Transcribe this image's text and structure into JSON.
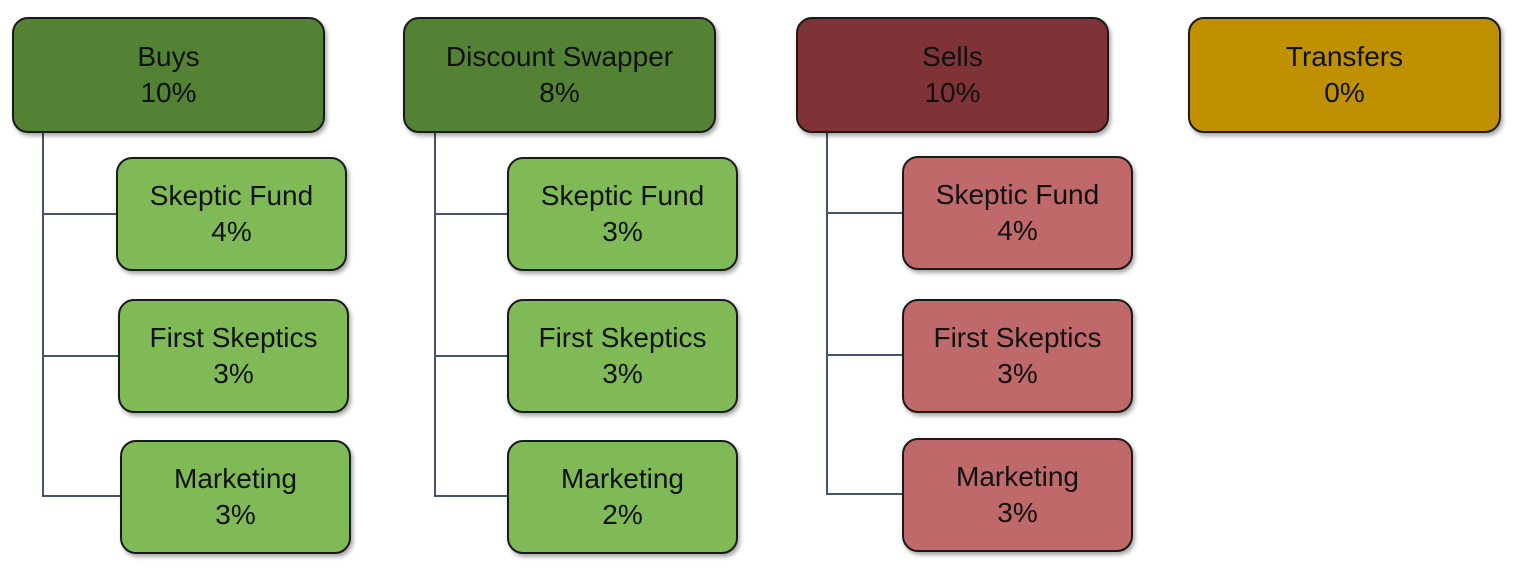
{
  "colors": {
    "buys_parent": "#548235",
    "buys_child": "#7fba57",
    "swapper_parent": "#548235",
    "swapper_child": "#7fba57",
    "sells_parent": "#7f3336",
    "sells_child": "#c0696a",
    "transfers_parent": "#bf9000",
    "connector": "#44546a"
  },
  "groups": [
    {
      "title": "Buys",
      "value": "10%",
      "children": [
        {
          "label": "Skeptic Fund",
          "value": "4%"
        },
        {
          "label": "First Skeptics",
          "value": "3%"
        },
        {
          "label": "Marketing",
          "value": "3%"
        }
      ]
    },
    {
      "title": "Discount Swapper",
      "value": "8%",
      "children": [
        {
          "label": "Skeptic Fund",
          "value": "3%"
        },
        {
          "label": "First Skeptics",
          "value": "3%"
        },
        {
          "label": "Marketing",
          "value": "2%"
        }
      ]
    },
    {
      "title": "Sells",
      "value": "10%",
      "children": [
        {
          "label": "Skeptic Fund",
          "value": "4%"
        },
        {
          "label": "First Skeptics",
          "value": "3%"
        },
        {
          "label": "Marketing",
          "value": "3%"
        }
      ]
    },
    {
      "title": "Transfers",
      "value": "0%",
      "children": []
    }
  ]
}
